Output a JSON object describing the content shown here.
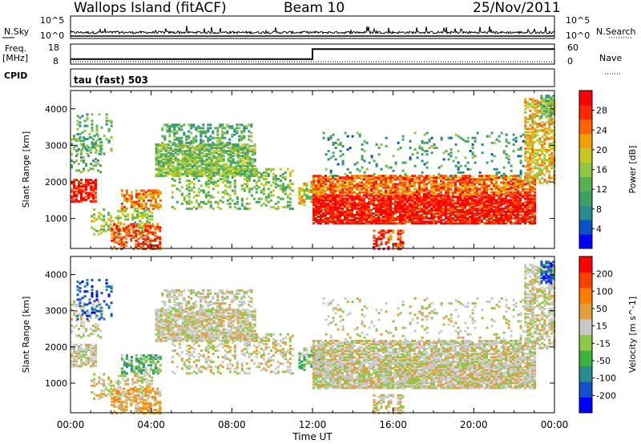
{
  "header": {
    "station": "Wallops Island (fitACF)",
    "beam": "Beam 10",
    "date": "25/Nov/2011"
  },
  "side_labels": {
    "nsky": "N.Sky",
    "freq_line1": "Freq.",
    "freq_line2": "[MHz]",
    "cpid": "CPID",
    "nsearch": "N.Search",
    "nave": "Nave",
    "cpid_value": "tau (fast) 503"
  },
  "top_panels": {
    "nsky_ticks": [
      "10^5",
      "10^0"
    ],
    "nsearch_ticks": [
      "10^5",
      "10^0"
    ],
    "freq_ticks": [
      "18",
      "8"
    ],
    "nave_ticks": [
      "60",
      "0"
    ],
    "freq_values": [
      {
        "time": "00:00",
        "mhz": 10.5
      },
      {
        "time": "12:00",
        "mhz": 10.5
      },
      {
        "time": "12:00",
        "mhz": 15.5
      },
      {
        "time": "24:00",
        "mhz": 15.5
      }
    ]
  },
  "colors": {
    "power": [
      "#0000ff",
      "#0a50c8",
      "#2a8c8c",
      "#3ca064",
      "#58b050",
      "#8ec840",
      "#c8c820",
      "#f0a000",
      "#ff6400",
      "#ff2800",
      "#ff0000"
    ],
    "velocity": [
      "#0000ff",
      "#1450c8",
      "#2a8c8c",
      "#3cb43c",
      "#8ec84a",
      "#c8c8c8",
      "#e0a040",
      "#ff8000",
      "#ff4000",
      "#ff0000"
    ]
  },
  "chart_data": [
    {
      "type": "heatmap",
      "name": "power",
      "xlabel": "",
      "ylabel": "Slant Range [km]",
      "ylim": [
        180,
        4500
      ],
      "xlim": [
        "00:00",
        "24:00"
      ],
      "yticks": [
        "1000",
        "2000",
        "3000",
        "4000"
      ],
      "colorbar_label": "Power [dB]",
      "colorbar_ticks": [
        "28",
        "24",
        "20",
        "16",
        "12",
        "8",
        "4"
      ],
      "colorbar_range": [
        0,
        32
      ]
    },
    {
      "type": "heatmap",
      "name": "velocity",
      "xlabel": "Time UT",
      "ylabel": "Slant Range [km]",
      "ylim": [
        180,
        4500
      ],
      "xlim": [
        "00:00",
        "24:00"
      ],
      "xticks": [
        "00:00",
        "04:00",
        "08:00",
        "12:00",
        "16:00",
        "20:00",
        "00:00"
      ],
      "yticks": [
        "1000",
        "2000",
        "3000",
        "4000"
      ],
      "colorbar_label": "Velocity [m s^-1]",
      "colorbar_ticks": [
        "200",
        "100",
        "50",
        "15",
        "-15",
        "-50",
        "-100",
        "-200"
      ],
      "colorbar_range": [
        -250,
        250
      ]
    }
  ]
}
